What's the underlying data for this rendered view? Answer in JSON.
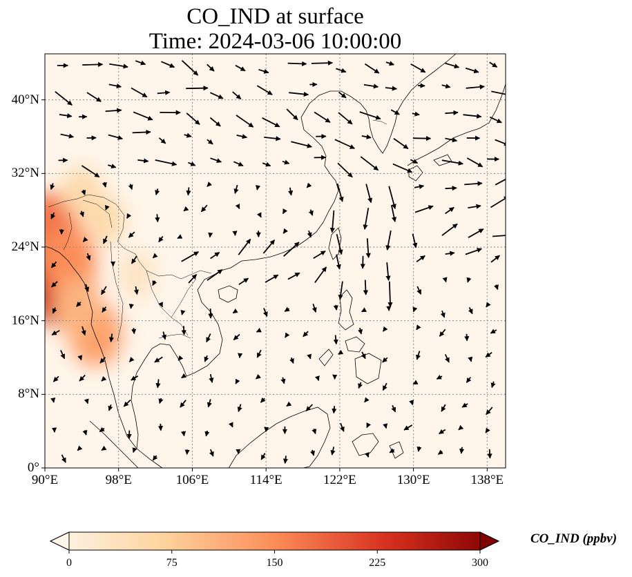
{
  "title_line1": "CO_IND at surface",
  "title_line2": "Time: 2024-03-06 10:00:00",
  "map": {
    "lon_range": [
      90,
      140
    ],
    "lat_range": [
      0,
      45
    ],
    "lon_ticks": [
      {
        "value": 90,
        "label": "90°E"
      },
      {
        "value": 98,
        "label": "98°E"
      },
      {
        "value": 106,
        "label": "106°E"
      },
      {
        "value": 114,
        "label": "114°E"
      },
      {
        "value": 122,
        "label": "122°E"
      },
      {
        "value": 130,
        "label": "130°E"
      },
      {
        "value": 138,
        "label": "138°E"
      }
    ],
    "lat_ticks": [
      {
        "value": 0,
        "label": "0°"
      },
      {
        "value": 8,
        "label": "8°N"
      },
      {
        "value": 16,
        "label": "16°N"
      },
      {
        "value": 24,
        "label": "24°N"
      },
      {
        "value": 32,
        "label": "32°N"
      },
      {
        "value": 40,
        "label": "40°N"
      }
    ],
    "gridlines": "dotted gray",
    "background_color": "#fff5eb",
    "hotspots": [
      {
        "lon": 91.5,
        "lat": 20.0,
        "value": 240
      },
      {
        "lon": 90.5,
        "lat": 26.0,
        "value": 170
      },
      {
        "lon": 92.5,
        "lat": 22.5,
        "value": 150
      },
      {
        "lon": 95.5,
        "lat": 14.5,
        "value": 130
      },
      {
        "lon": 93.5,
        "lat": 17.5,
        "value": 110
      },
      {
        "lon": 96.5,
        "lat": 27.0,
        "value": 60
      },
      {
        "lon": 94.0,
        "lat": 30.0,
        "value": 60
      },
      {
        "lon": 100.0,
        "lat": 21.0,
        "value": 40
      }
    ]
  },
  "colorbar": {
    "label": "CO_IND (ppbv)",
    "min": 0,
    "max": 300,
    "ticks": [
      "0",
      "75",
      "150",
      "225",
      "300"
    ],
    "colormap": "OrRd",
    "colors": [
      "#fff5eb",
      "#fdd49e",
      "#fc8d59",
      "#d7301f",
      "#7f0000"
    ],
    "extend": "both"
  }
}
